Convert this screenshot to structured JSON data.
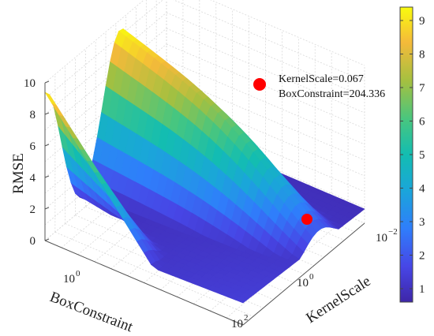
{
  "chart_data": {
    "type": "surface",
    "zlabel": "RMSE",
    "xlabel": "BoxConstraint",
    "ylabel": "KernelScale",
    "zlim": [
      0,
      10
    ],
    "z_ticks": [
      "0",
      "2",
      "4",
      "6",
      "8",
      "10"
    ],
    "x_tick_labels": [
      {
        "base": "10",
        "exp": "0"
      }
    ],
    "y_tick_labels": [
      {
        "base": "10",
        "exp": "−2"
      },
      {
        "base": "10",
        "exp": "0"
      },
      {
        "base": "10",
        "exp": "2"
      }
    ],
    "colorbar": {
      "min": 0.6,
      "max": 9.4,
      "ticks": [
        "1",
        "2",
        "3",
        "4",
        "5",
        "6",
        "7",
        "8",
        "9"
      ]
    },
    "surface_peak": {
      "rmse": 9.4
    },
    "points": [
      {
        "name": "marker-large",
        "color": "#ff0000"
      },
      {
        "name": "optimum",
        "kernel_scale": 0.067,
        "box_constraint": 204.336,
        "color": "#ff0000"
      }
    ],
    "annotation": {
      "line1": "KernelScale=0.067",
      "line2": "BoxConstraint=204.336"
    }
  }
}
